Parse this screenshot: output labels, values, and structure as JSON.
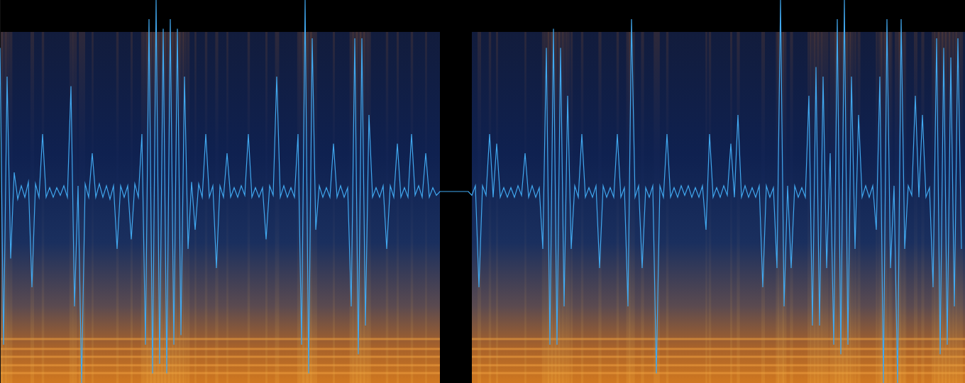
{
  "chart_data": {
    "type": "line",
    "color": "#41a8ef",
    "grid": false,
    "tick_labels": false,
    "xlim": [
      0,
      1360
    ],
    "ylim": [
      -1,
      1
    ],
    "x": [
      0,
      5,
      10,
      15,
      20,
      25,
      30,
      35,
      40,
      45,
      50,
      55,
      60,
      65,
      70,
      75,
      80,
      85,
      90,
      95,
      100,
      105,
      110,
      115,
      120,
      125,
      130,
      135,
      140,
      145,
      150,
      155,
      160,
      165,
      170,
      175,
      180,
      185,
      190,
      195,
      200,
      205,
      210,
      215,
      220,
      225,
      230,
      235,
      240,
      245,
      250,
      255,
      260,
      265,
      270,
      275,
      280,
      285,
      290,
      295,
      300,
      305,
      310,
      315,
      320,
      325,
      330,
      335,
      340,
      345,
      350,
      355,
      360,
      365,
      370,
      375,
      380,
      385,
      390,
      395,
      400,
      405,
      410,
      415,
      420,
      425,
      430,
      435,
      440,
      445,
      450,
      455,
      460,
      465,
      470,
      475,
      480,
      485,
      490,
      495,
      500,
      505,
      510,
      515,
      520,
      525,
      530,
      535,
      540,
      545,
      550,
      555,
      560,
      565,
      570,
      575,
      580,
      585,
      590,
      595,
      600,
      605,
      610,
      615,
      620,
      625,
      630,
      635,
      640,
      645,
      650,
      655,
      660,
      665,
      670,
      675,
      680,
      685,
      690,
      695,
      700,
      705,
      710,
      715,
      720,
      725,
      730,
      735,
      740,
      745,
      750,
      755,
      760,
      765,
      770,
      775,
      780,
      785,
      790,
      795,
      800,
      805,
      810,
      815,
      820,
      825,
      830,
      835,
      840,
      845,
      850,
      855,
      860,
      865,
      870,
      875,
      880,
      885,
      890,
      895,
      900,
      905,
      910,
      915,
      920,
      925,
      930,
      935,
      940,
      945,
      950,
      955,
      960,
      965,
      970,
      975,
      980,
      985,
      990,
      995,
      1000,
      1005,
      1010,
      1015,
      1020,
      1025,
      1030,
      1035,
      1040,
      1045,
      1050,
      1055,
      1060,
      1065,
      1070,
      1075,
      1080,
      1085,
      1090,
      1095,
      1100,
      1105,
      1110,
      1115,
      1120,
      1125,
      1130,
      1135,
      1140,
      1145,
      1150,
      1155,
      1160,
      1165,
      1170,
      1175,
      1180,
      1185,
      1190,
      1195,
      1200,
      1205,
      1210,
      1215,
      1220,
      1225,
      1230,
      1235,
      1240,
      1245,
      1250,
      1255,
      1260,
      1265,
      1270,
      1275,
      1280,
      1285,
      1290,
      1295,
      1300,
      1305,
      1310,
      1315,
      1320,
      1325,
      1330,
      1335,
      1340,
      1345,
      1350,
      1355
    ],
    "values": [
      0.75,
      -0.8,
      0.6,
      -0.35,
      0.1,
      -0.04,
      0.03,
      -0.03,
      0.05,
      -0.5,
      0.04,
      -0.03,
      0.3,
      -0.03,
      0.02,
      -0.03,
      0.02,
      -0.02,
      0.03,
      -0.03,
      0.55,
      -0.6,
      0.03,
      -1.0,
      0.04,
      -0.03,
      0.2,
      -0.03,
      0.04,
      -0.03,
      0.03,
      -0.04,
      0.03,
      -0.3,
      0.03,
      -0.03,
      0.03,
      -0.25,
      0.04,
      -0.03,
      0.3,
      -0.8,
      0.9,
      -0.95,
      1.0,
      -0.9,
      0.85,
      -0.95,
      0.9,
      -0.8,
      0.85,
      -0.75,
      0.6,
      -0.3,
      0.05,
      -0.2,
      0.04,
      -0.03,
      0.3,
      -0.03,
      0.03,
      -0.4,
      0.03,
      -0.03,
      0.2,
      -0.03,
      0.02,
      -0.03,
      0.03,
      -0.02,
      0.3,
      -0.03,
      0.02,
      -0.03,
      0.02,
      -0.25,
      0.03,
      -0.02,
      0.6,
      -0.03,
      0.03,
      -0.03,
      0.02,
      -0.03,
      0.3,
      -0.8,
      1.0,
      -0.95,
      0.8,
      -0.2,
      0.03,
      -0.03,
      0.02,
      -0.03,
      0.25,
      -0.03,
      0.03,
      -0.03,
      0.02,
      -0.6,
      0.8,
      -0.85,
      0.8,
      -0.7,
      0.4,
      -0.03,
      0.02,
      -0.03,
      0.03,
      -0.3,
      0.03,
      -0.03,
      0.25,
      -0.03,
      0.02,
      -0.03,
      0.3,
      -0.02,
      0.03,
      -0.03,
      0.2,
      -0.03,
      0.02,
      -0.02,
      0,
      0,
      0,
      0,
      0,
      0,
      0,
      0,
      0,
      -0.02,
      0.03,
      -0.5,
      0.03,
      -0.02,
      0.3,
      -0.03,
      0.25,
      -0.03,
      0.02,
      -0.03,
      0.02,
      -0.03,
      0.03,
      -0.02,
      0.2,
      -0.03,
      0.03,
      -0.03,
      0.02,
      -0.3,
      0.75,
      -0.8,
      0.85,
      -0.8,
      0.75,
      -0.6,
      0.5,
      -0.3,
      0.03,
      -0.03,
      0.3,
      -0.03,
      0.02,
      -0.03,
      0.03,
      -0.4,
      0.03,
      -0.03,
      0.02,
      -0.03,
      0.3,
      -0.03,
      0.02,
      -0.6,
      0.9,
      -0.03,
      0.03,
      -0.4,
      0.02,
      -0.03,
      0.03,
      -0.95,
      0.03,
      -0.03,
      0.3,
      -0.03,
      0.02,
      -0.03,
      0.03,
      -0.02,
      0.03,
      -0.03,
      0.02,
      -0.03,
      0.03,
      -0.2,
      0.3,
      -0.03,
      0.02,
      -0.03,
      0.03,
      -0.02,
      0.25,
      -0.03,
      0.4,
      -0.03,
      0.03,
      -0.03,
      0.02,
      -0.03,
      0.03,
      -0.5,
      0.03,
      -0.03,
      0.02,
      -0.4,
      1.0,
      -0.6,
      0.03,
      -0.4,
      0.03,
      -0.03,
      0.02,
      -0.03,
      0.5,
      -0.7,
      0.65,
      -0.7,
      0.6,
      -0.4,
      0.2,
      -0.8,
      0.9,
      -0.85,
      1.0,
      -0.8,
      0.6,
      -0.3,
      0.4,
      -0.03,
      0.03,
      -0.03,
      0.03,
      -0.2,
      0.6,
      -1.0,
      0.9,
      -0.4,
      0.03,
      -1.0,
      0.9,
      -0.3,
      0.03,
      -0.02,
      0.5,
      -0.03,
      0.4,
      -0.03,
      0.02,
      -0.5,
      0.8,
      -0.85,
      0.75,
      -0.8,
      0.7,
      -0.6,
      0.8,
      -0.3
    ]
  }
}
